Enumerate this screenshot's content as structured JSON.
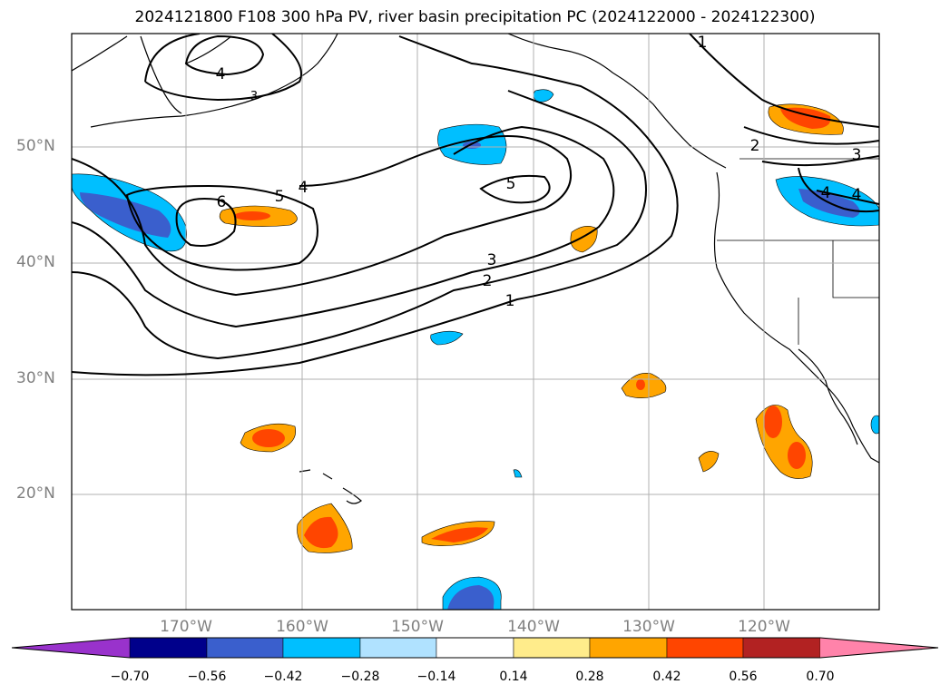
{
  "title": "2024121800 F108 300 hPa PV, river basin precipitation PC (2024122000 - 2024122300)",
  "map": {
    "region": "North Pacific and western North America",
    "lat_labels": [
      "50°N",
      "40°N",
      "30°N",
      "20°N"
    ],
    "lon_labels": [
      "170°W",
      "160°W",
      "150°W",
      "140°W",
      "130°W",
      "120°W"
    ],
    "pv_contour_labels": [
      "1",
      "2",
      "3",
      "4",
      "4",
      "5",
      "5",
      "6",
      "1",
      "2",
      "3",
      "4",
      "4",
      "3"
    ],
    "gridline_color": "#b0b0b0"
  },
  "colorbar": {
    "tick_labels": [
      "−0.70",
      "−0.56",
      "−0.42",
      "−0.28",
      "−0.14",
      "0.14",
      "0.28",
      "0.42",
      "0.56",
      "0.70"
    ],
    "colors": [
      "#9932cc",
      "#00008b",
      "#3a5fcd",
      "#00bfff",
      "#b0e2ff",
      "#ffffff",
      "#ffec8b",
      "#ffa500",
      "#ff4500",
      "#b22222",
      "#ff83aa"
    ]
  }
}
